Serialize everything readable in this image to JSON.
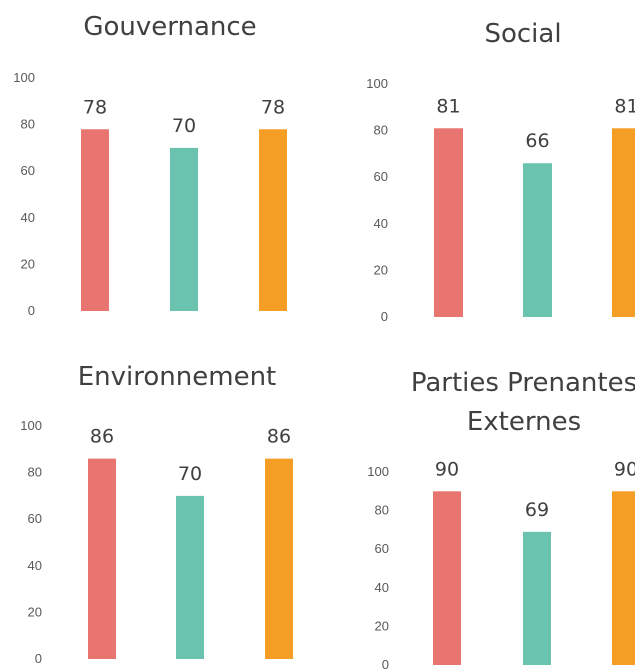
{
  "chart_data": [
    {
      "type": "bar",
      "title": [
        "Gouvernance"
      ],
      "categories": [
        "",
        "",
        ""
      ],
      "values": [
        78,
        70,
        78
      ],
      "colors": [
        "#E8756F",
        "#69C3AE",
        "#F59E25"
      ],
      "ylim": [
        0,
        100
      ],
      "yticks": [
        "0",
        "20",
        "40",
        "60",
        "80",
        "100"
      ],
      "grid": false,
      "legend": "none"
    },
    {
      "type": "bar",
      "title": [
        "Social"
      ],
      "categories": [
        "",
        "",
        ""
      ],
      "values": [
        81,
        66,
        81
      ],
      "colors": [
        "#E8756F",
        "#69C3AE",
        "#F59E25"
      ],
      "ylim": [
        0,
        100
      ],
      "yticks": [
        "0",
        "20",
        "40",
        "60",
        "80",
        "100"
      ],
      "grid": false,
      "legend": "none"
    },
    {
      "type": "bar",
      "title": [
        "Environnement"
      ],
      "categories": [
        "",
        "",
        ""
      ],
      "values": [
        86,
        70,
        86
      ],
      "colors": [
        "#E8756F",
        "#69C3AE",
        "#F59E25"
      ],
      "ylim": [
        0,
        100
      ],
      "yticks": [
        "0",
        "20",
        "40",
        "60",
        "80",
        "100"
      ],
      "grid": false,
      "legend": "none"
    },
    {
      "type": "bar",
      "title": [
        "Parties Prenantes",
        "Externes"
      ],
      "categories": [
        "",
        "",
        ""
      ],
      "values": [
        90,
        69,
        90
      ],
      "colors": [
        "#E8756F",
        "#69C3AE",
        "#F59E25"
      ],
      "ylim": [
        0,
        100
      ],
      "yticks": [
        "0",
        "20",
        "40",
        "60",
        "80",
        "100"
      ],
      "grid": false,
      "legend": "none"
    }
  ]
}
